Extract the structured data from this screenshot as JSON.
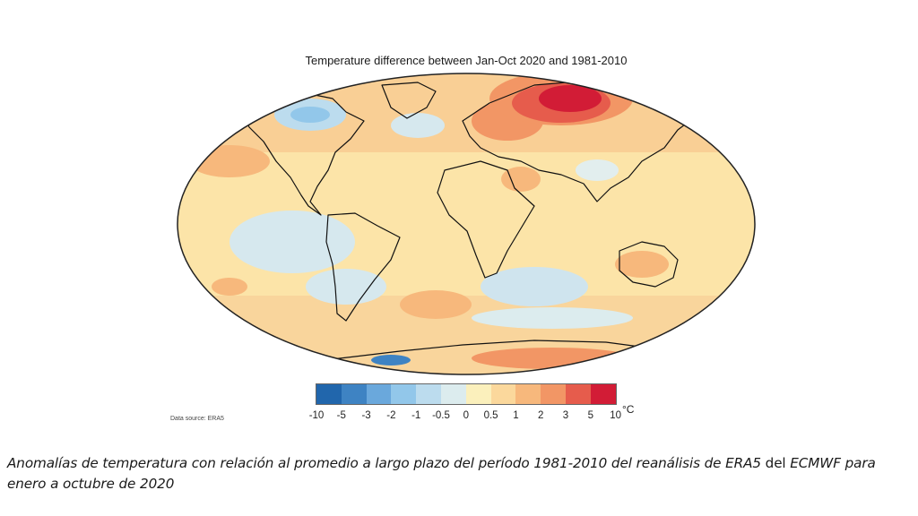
{
  "map": {
    "title": "Temperature difference between Jan-Oct 2020 and 1981-2010",
    "projection": "Robinson",
    "data_source": "Data source: ERA5"
  },
  "legend": {
    "unit": "°C",
    "labels": [
      "-10",
      "-5",
      "-3",
      "-2",
      "-1",
      "-0.5",
      "0",
      "0.5",
      "1",
      "2",
      "3",
      "5",
      "10"
    ],
    "colors": [
      "#2166ac",
      "#3e83c3",
      "#6aa8dc",
      "#92c7ea",
      "#bcdcee",
      "#dcecee",
      "#fbf0bc",
      "#fbd89c",
      "#f7b87c",
      "#f29665",
      "#e65c4c",
      "#d21c36"
    ]
  },
  "caption": {
    "part1": "Anomalías de temperatura con relación al promedio a largo plazo del período 1981-2010 del reanálisis de ERA5",
    "part2": " del ",
    "part3": "ECMWF para enero a octubre de 2020"
  }
}
